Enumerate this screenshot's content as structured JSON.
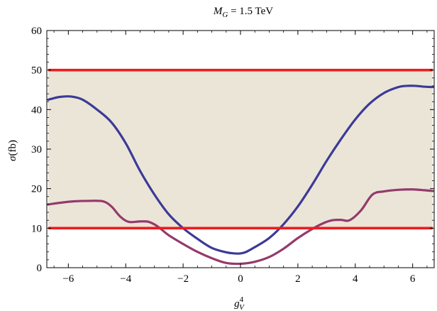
{
  "chart_data": {
    "type": "line",
    "title": {
      "prefix": "M",
      "sub": "G",
      "suffix": " = 1.5 TeV"
    },
    "xlabel": {
      "base": "g",
      "sup": "4",
      "sub": "V"
    },
    "ylabel": {
      "main": "σ",
      "unit": "(fb)"
    },
    "xlim": [
      -6.75,
      6.75
    ],
    "ylim": [
      0,
      60
    ],
    "xticks": [
      -6,
      -4,
      -2,
      0,
      2,
      4,
      6
    ],
    "xtick_labels": [
      "−6",
      "−4",
      "−2",
      "0",
      "2",
      "4",
      "6"
    ],
    "yticks": [
      0,
      10,
      20,
      30,
      40,
      50,
      60
    ],
    "ytick_labels": [
      "0",
      "10",
      "20",
      "30",
      "40",
      "50",
      "60"
    ],
    "band": {
      "x": [
        -6.7,
        6.7
      ],
      "y": [
        10,
        50
      ],
      "color": "#ebe5d8"
    },
    "hlines": [
      {
        "y": 50,
        "color": "#ee1c1c"
      },
      {
        "y": 10,
        "color": "#ee1c1c"
      }
    ],
    "series": [
      {
        "color": "#3c3a96",
        "x": [
          -6.7,
          -6.3,
          -5.9,
          -5.5,
          -5.0,
          -4.5,
          -4.0,
          -3.5,
          -3.0,
          -2.5,
          -2.0,
          -1.5,
          -1.0,
          -0.5,
          -0.2,
          0.0,
          0.2,
          0.5,
          1.0,
          1.5,
          2.0,
          2.5,
          3.0,
          3.5,
          4.0,
          4.5,
          5.0,
          5.5,
          5.8,
          6.1,
          6.4,
          6.7
        ],
        "y": [
          42.5,
          43.2,
          43.3,
          42.5,
          40.0,
          36.8,
          31.5,
          24.5,
          18.5,
          13.5,
          10.0,
          7.3,
          5.0,
          3.9,
          3.6,
          3.6,
          4.0,
          5.2,
          7.5,
          11.0,
          15.5,
          21.0,
          27.0,
          32.5,
          37.5,
          41.5,
          44.2,
          45.7,
          46.0,
          46.0,
          45.8,
          45.7
        ]
      },
      {
        "color": "#943a6c",
        "x": [
          -6.7,
          -6.2,
          -5.8,
          -5.3,
          -4.8,
          -4.5,
          -4.2,
          -3.9,
          -3.5,
          -3.2,
          -2.9,
          -2.5,
          -2.0,
          -1.5,
          -1.0,
          -0.5,
          0.0,
          0.5,
          1.0,
          1.5,
          2.0,
          2.5,
          2.9,
          3.2,
          3.5,
          3.8,
          4.2,
          4.6,
          5.0,
          5.5,
          6.0,
          6.4,
          6.7
        ],
        "y": [
          16.0,
          16.5,
          16.8,
          16.9,
          16.8,
          15.5,
          13.0,
          11.6,
          11.7,
          11.6,
          10.5,
          8.2,
          6.0,
          4.0,
          2.4,
          1.2,
          1.0,
          1.5,
          2.7,
          4.8,
          7.5,
          9.8,
          11.3,
          12.0,
          12.1,
          12.0,
          14.5,
          18.5,
          19.3,
          19.7,
          19.8,
          19.6,
          19.4
        ]
      }
    ]
  }
}
